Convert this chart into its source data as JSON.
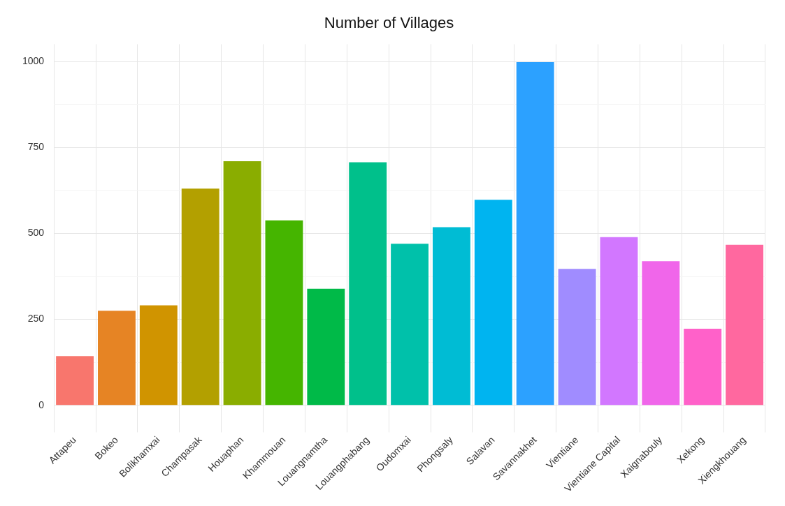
{
  "chart_data": {
    "type": "bar",
    "title": "Number of Villages",
    "categories": [
      "Attapeu",
      "Bokeo",
      "Bolikhamxai",
      "Champasak",
      "Houaphan",
      "Khammouan",
      "Louangnamtha",
      "Louangphabang",
      "Oudomxai",
      "Phongsaly",
      "Salavan",
      "Savannakhet",
      "Vientiane",
      "Vientiane Capital",
      "Xaignabouly",
      "Xekong",
      "Xiengkhouang"
    ],
    "values": [
      143,
      275,
      291,
      630,
      710,
      538,
      339,
      707,
      470,
      518,
      598,
      998,
      397,
      489,
      419,
      223,
      467
    ],
    "colors": [
      "#f8766d",
      "#e68424",
      "#d09400",
      "#b3a000",
      "#8aad00",
      "#45b500",
      "#00ba48",
      "#00c08b",
      "#00c1aa",
      "#00bcd4",
      "#00b4f0",
      "#2ca1ff",
      "#a08cff",
      "#d277ff",
      "#f066ea",
      "#ff61c9",
      "#ff689f"
    ],
    "ylim": [
      -50,
      1050
    ],
    "yticks": [
      0,
      {
        "value": 125,
        "label": null
      },
      250,
      {
        "value": 375,
        "label": null
      },
      500,
      {
        "value": 625,
        "label": null
      },
      750,
      {
        "value": 875,
        "label": null
      },
      1000
    ],
    "grid": true,
    "legend": false
  }
}
